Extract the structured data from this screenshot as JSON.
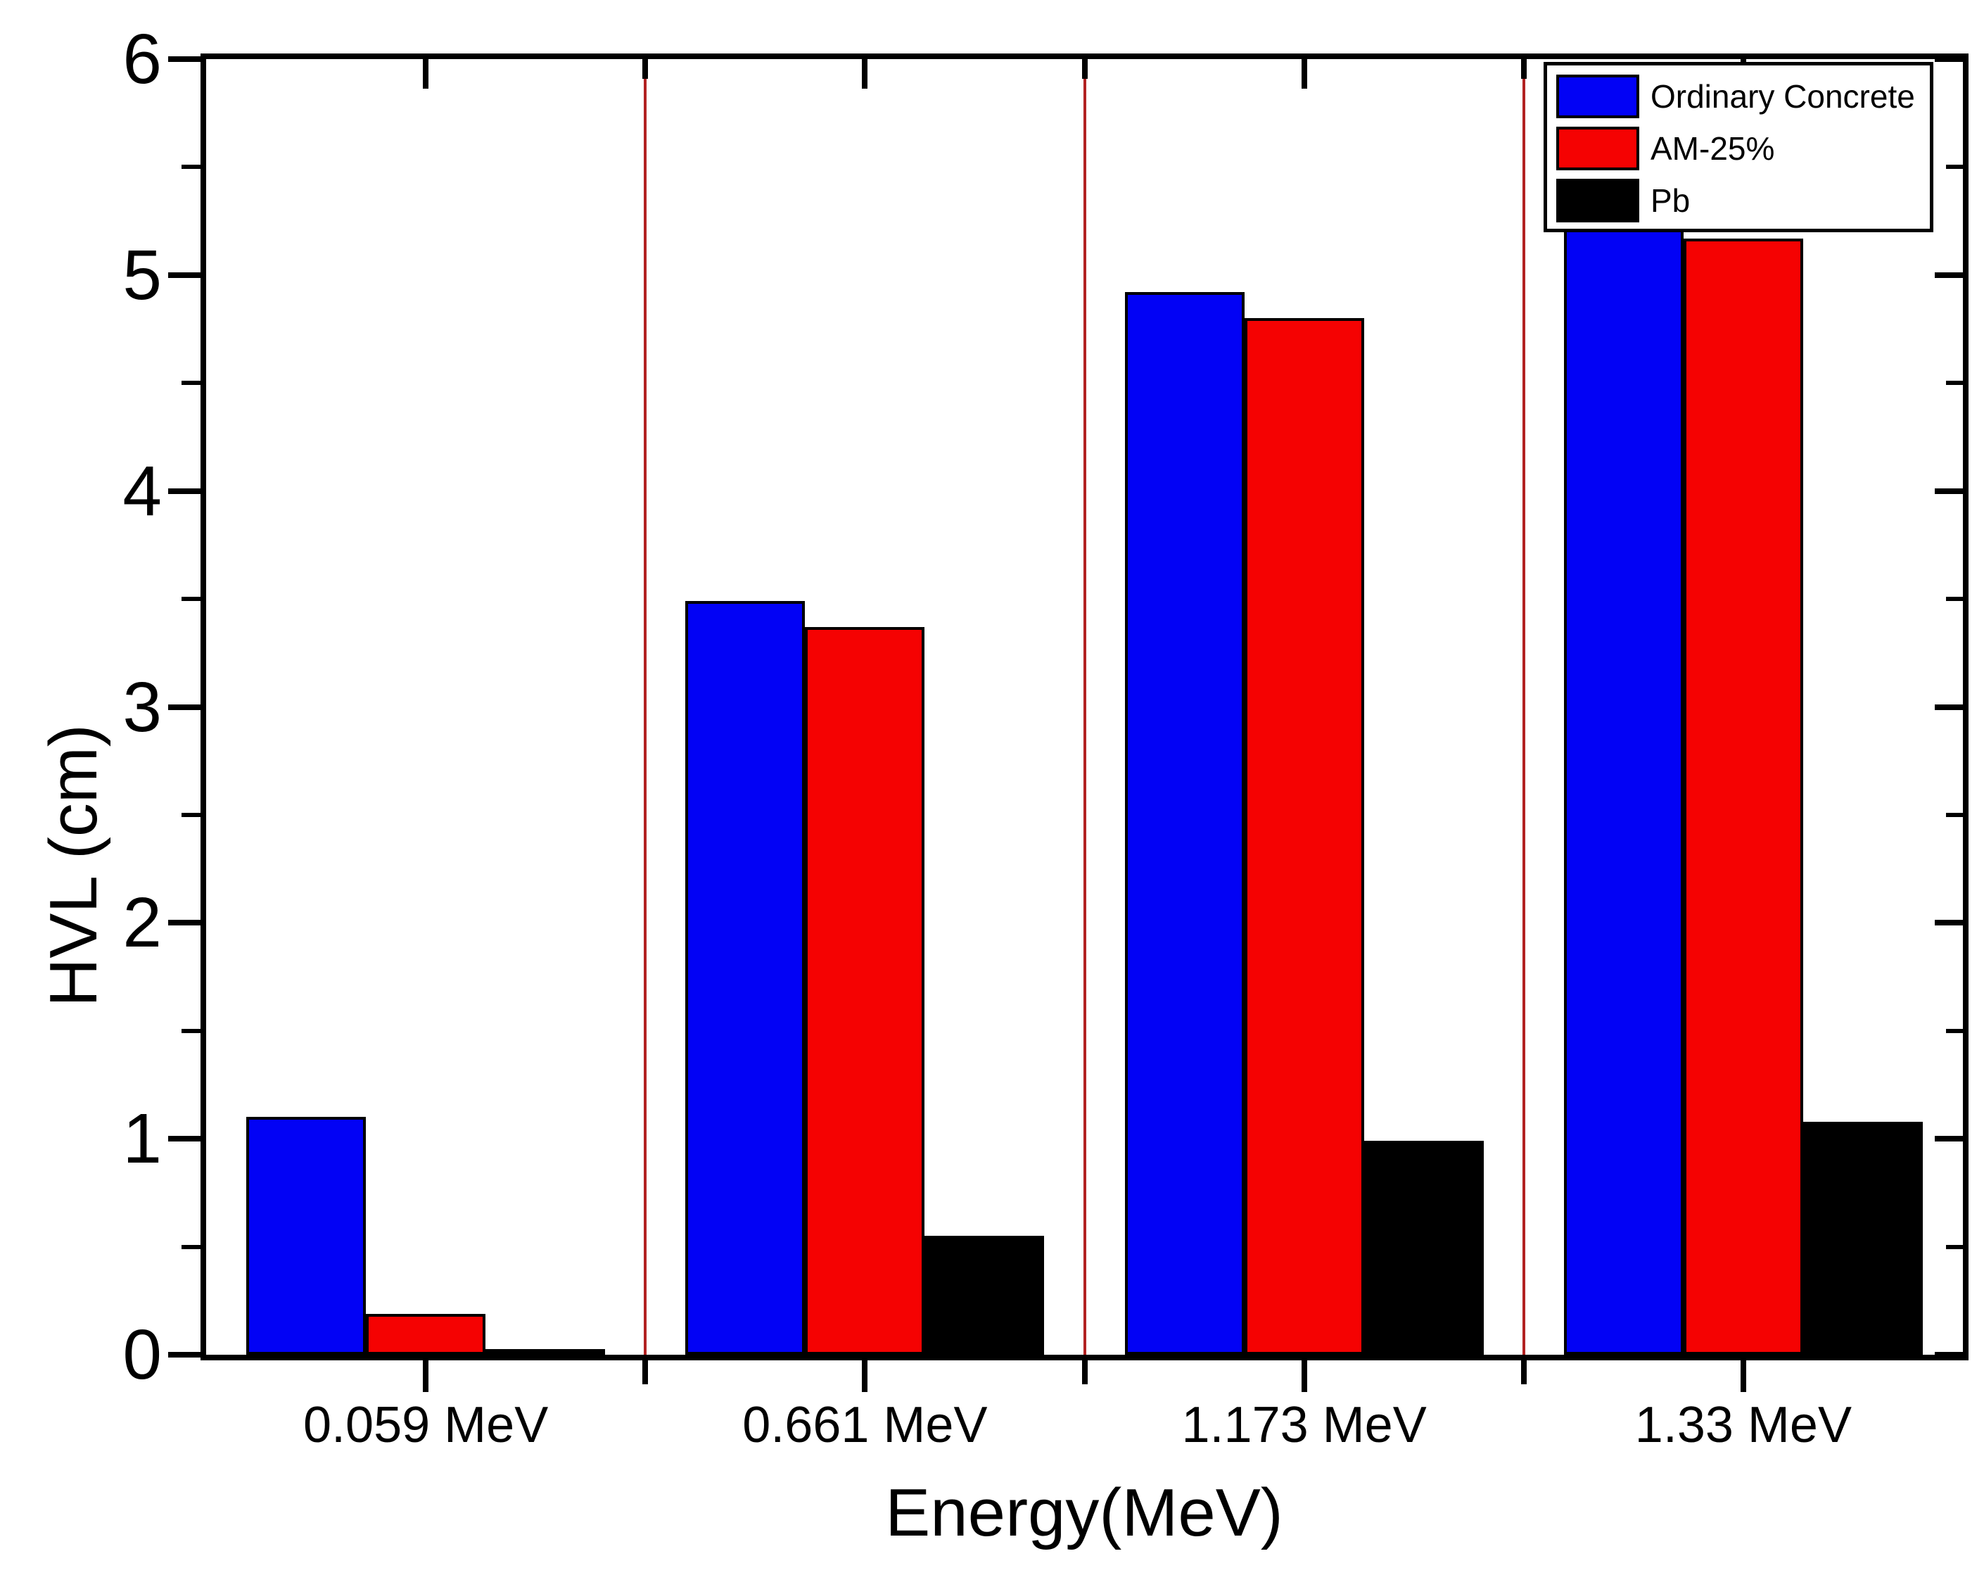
{
  "chart_data": {
    "type": "bar",
    "title": "",
    "xlabel": "Energy(MeV)",
    "ylabel": "HVL (cm)",
    "categories": [
      "0.059 MeV",
      "0.661 MeV",
      "1.173 MeV",
      "1.33 MeV"
    ],
    "series": [
      {
        "name": "Ordinary Concrete",
        "color": "#0202f5",
        "values": [
          1.1,
          3.49,
          4.92,
          5.21
        ]
      },
      {
        "name": "AM-25%",
        "color": "#f50202",
        "values": [
          0.19,
          3.37,
          4.8,
          5.17
        ]
      },
      {
        "name": "Pb",
        "color": "#000000",
        "values": [
          0.02,
          0.55,
          0.99,
          1.08
        ]
      }
    ],
    "ylim": [
      0,
      6
    ],
    "y_major_step": 1,
    "y_minor_step": 0.5,
    "y_tick_labels": [
      "0",
      "1",
      "2",
      "3",
      "4",
      "5",
      "6"
    ],
    "grid": false,
    "legend_position": "top-right",
    "frame": "full-box-with-mirrored-ticks",
    "group_separator_color": "#b22222",
    "bar_border_color": "#000000",
    "axis_color": "#000000",
    "background_color": "#ffffff"
  },
  "legend": {
    "items": [
      {
        "label": "Ordinary Concrete",
        "color": "#0202f5"
      },
      {
        "label": "AM-25%",
        "color": "#f50202"
      },
      {
        "label": "Pb",
        "color": "#000000"
      }
    ]
  }
}
